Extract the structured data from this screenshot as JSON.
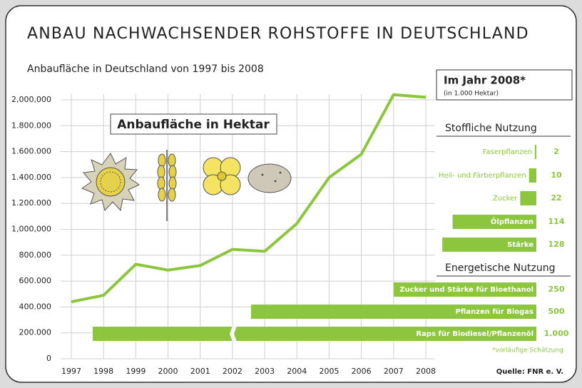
{
  "chart_data": [
    {
      "type": "line",
      "title": "ANBAU NACHWACHSENDER ROHSTOFFE IN DEUTSCHLAND",
      "subtitle": "Anbaufläche in Deutschland von 1997 bis 2008",
      "annotation": "Anbaufläche in Hektar",
      "x": [
        1997,
        1998,
        1999,
        2000,
        2001,
        2002,
        2003,
        2004,
        2005,
        2006,
        2007,
        2008
      ],
      "values": [
        440000,
        490000,
        730000,
        685000,
        720000,
        845000,
        830000,
        1045000,
        1400000,
        1580000,
        2040000,
        2020000
      ],
      "color": "#8cc63f",
      "xlim": [
        1997,
        2008
      ],
      "ylim": [
        0,
        2000000
      ],
      "yticks": [
        0,
        {
          "value": 200000,
          "label": "200.000"
        },
        {
          "value": 400000,
          "label": "400.000"
        },
        {
          "value": 600000,
          "label": "600.000"
        },
        {
          "value": 800000,
          "label": "800.000"
        },
        {
          "value": 1000000,
          "label": "1,000,000"
        },
        {
          "value": 1200000,
          "label": "1.200.000"
        },
        {
          "value": 1400000,
          "label": "1.400.000"
        },
        {
          "value": 1600000,
          "label": "1.600.000"
        },
        {
          "value": 1800000,
          "label": "1.800.000"
        },
        {
          "value": 2000000,
          "label": "2,000,000"
        }
      ],
      "grid": true
    },
    {
      "type": "hbar",
      "title": "Im Jahr 2008*",
      "subtitle": "(in 1.000 Hektar)",
      "color": "#8cc63f",
      "groups": [
        {
          "name": "Stoffliche Nutzung",
          "categories": [
            "Faserpflanzen",
            "Heil- und Färberpflanzen",
            "Zucker",
            "Ölpflanzen",
            "Stärke"
          ],
          "values": [
            2,
            10,
            22,
            114,
            128
          ]
        },
        {
          "name": "Energetische Nutzung",
          "categories": [
            "Zucker und Stärke für Bioethanol",
            "Pflanzen für Biogas",
            "Raps für Biodiesel/Pflanzenöl"
          ],
          "values": [
            250,
            500,
            1000
          ],
          "value_labels": [
            "250",
            "500",
            "1.000"
          ]
        }
      ],
      "note": "*vorläufige Schätzung",
      "source": "Quelle: FNR e. V."
    }
  ]
}
